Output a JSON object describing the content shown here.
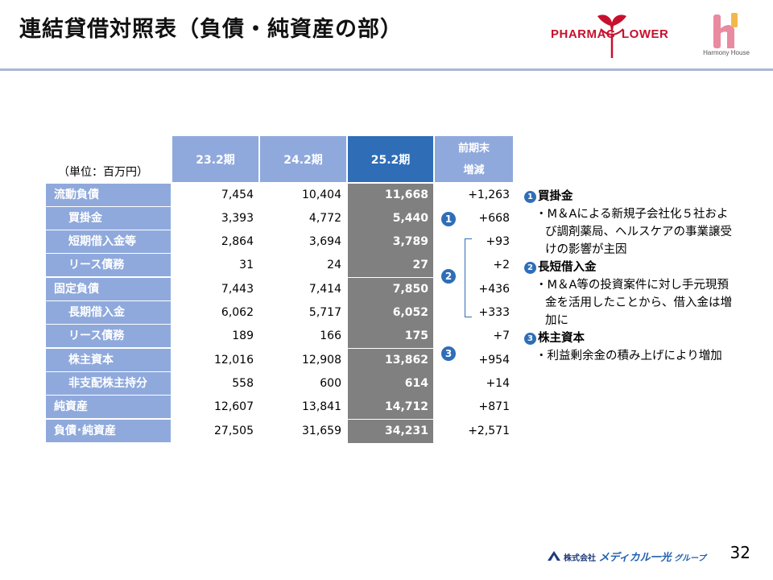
{
  "title": "連結貸借対照表（負債・純資産の部）",
  "logos": {
    "pharmaflower_left": "PHARMAC",
    "pharmaflower_right": "LOWER",
    "harmony_house": "Harmony House"
  },
  "unit": "（単位：百万円）",
  "columns": [
    "23.2期",
    "24.2期",
    "25.2期",
    "前期末",
    "増減"
  ],
  "rows": [
    {
      "label": "流動負債",
      "v1": "7,454",
      "v2": "10,404",
      "v3": "11,668",
      "diff": "+1,263"
    },
    {
      "label": "買掛金",
      "v1": "3,393",
      "v2": "4,772",
      "v3": "5,440",
      "diff": "+668"
    },
    {
      "label": "短期借入金等",
      "v1": "2,864",
      "v2": "3,694",
      "v3": "3,789",
      "diff": "+93"
    },
    {
      "label": "リース債務",
      "v1": "31",
      "v2": "24",
      "v3": "27",
      "diff": "+2"
    },
    {
      "label": "固定負債",
      "v1": "7,443",
      "v2": "7,414",
      "v3": "7,850",
      "diff": "+436"
    },
    {
      "label": "長期借入金",
      "v1": "6,062",
      "v2": "5,717",
      "v3": "6,052",
      "diff": "+333"
    },
    {
      "label": "リース債務",
      "v1": "189",
      "v2": "166",
      "v3": "175",
      "diff": "+7"
    },
    {
      "label": "株主資本",
      "v1": "12,016",
      "v2": "12,908",
      "v3": "13,862",
      "diff": "+954"
    },
    {
      "label": "非支配株主持分",
      "v1": "558",
      "v2": "600",
      "v3": "614",
      "diff": "+14"
    },
    {
      "label": "純資産",
      "v1": "12,607",
      "v2": "13,841",
      "v3": "14,712",
      "diff": "+871"
    },
    {
      "label": "負債･純資産",
      "v1": "27,505",
      "v2": "31,659",
      "v3": "34,231",
      "diff": "+2,571"
    }
  ],
  "markers": [
    "1",
    "2",
    "3"
  ],
  "notes": [
    {
      "num": "1",
      "head": "買掛金",
      "body": "・M＆Aによる新規子会社化５社および調剤薬局、ヘルスケアの事業譲受けの影響が主因"
    },
    {
      "num": "2",
      "head": "長短借入金",
      "body": "・M＆A等の投資案件に対し手元現預金を活用したことから、借入金は増加に"
    },
    {
      "num": "3",
      "head": "株主資本",
      "body": "・利益剰余金の積み上げにより増加"
    }
  ],
  "footer": {
    "company_prefix": "株式会社",
    "company_brand": "メディカル一光",
    "company_suffix": "グループ",
    "page": "32"
  }
}
